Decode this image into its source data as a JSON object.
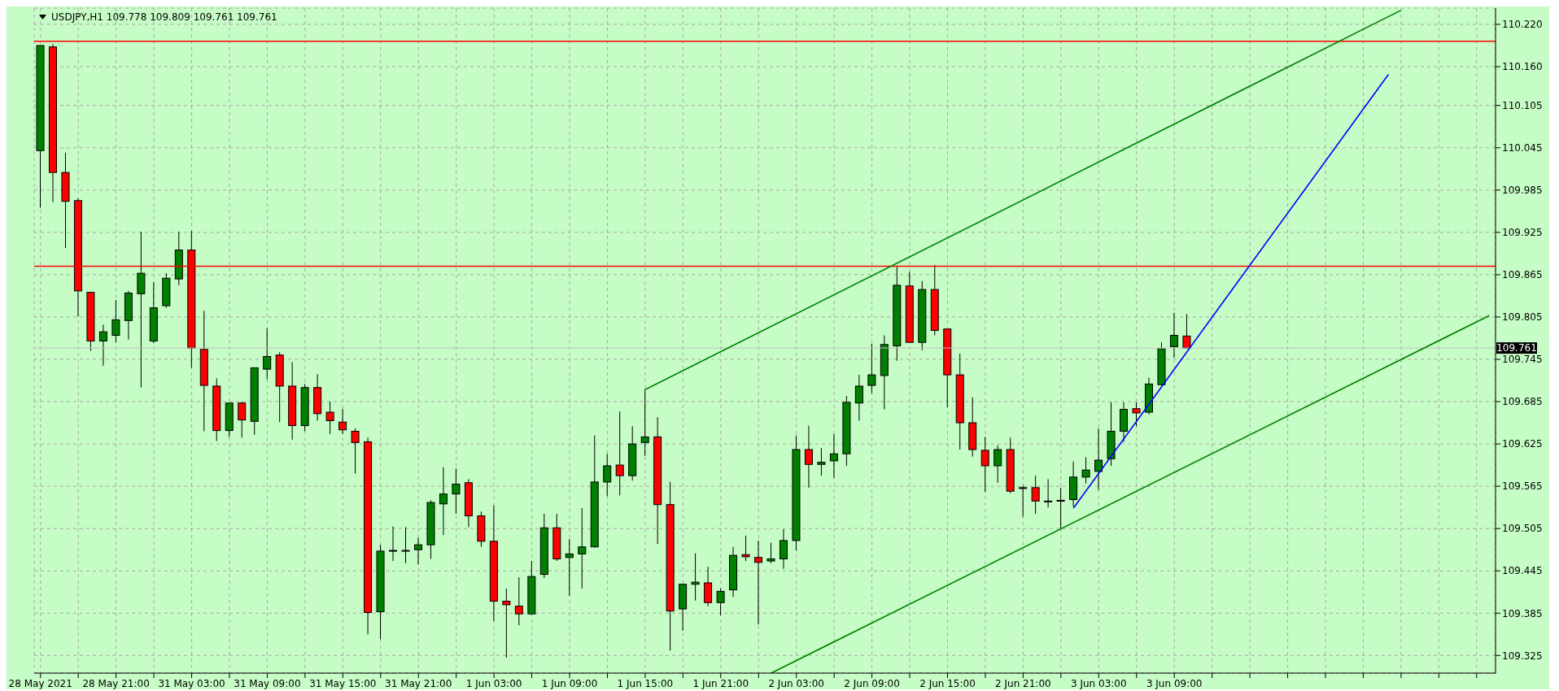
{
  "chart_data": {
    "type": "candlestick",
    "title": "USDJPY,H1 109.778 109.809 109.761 109.761",
    "categories": [
      "28 May 2021",
      null,
      null,
      null,
      null,
      null,
      "28 May 21:00",
      null,
      null,
      null,
      null,
      null,
      "31 May 03:00",
      null,
      null,
      null,
      null,
      null,
      "31 May 09:00",
      null,
      null,
      null,
      null,
      null,
      "31 May 15:00",
      null,
      null,
      null,
      null,
      null,
      "31 May 21:00",
      null,
      null,
      null,
      null,
      null,
      "1 Jun 03:00",
      null,
      null,
      null,
      null,
      null,
      "1 Jun 09:00",
      null,
      null,
      null,
      null,
      null,
      "1 Jun 15:00",
      null,
      null,
      null,
      null,
      null,
      "1 Jun 21:00",
      null,
      null,
      null,
      null,
      null,
      "2 Jun 03:00",
      null,
      null,
      null,
      null,
      null,
      "2 Jun 09:00",
      null,
      null,
      null,
      null,
      null,
      "2 Jun 15:00",
      null,
      null,
      null,
      null,
      null,
      "2 Jun 21:00",
      null,
      null,
      null,
      null,
      null,
      "3 Jun 03:00",
      null,
      null,
      null,
      null,
      null,
      "3 Jun 09:00",
      null,
      null,
      null,
      null,
      null,
      null,
      null,
      null,
      null,
      null,
      null,
      null,
      null,
      null,
      null,
      null,
      null,
      null,
      null,
      null,
      null,
      null,
      null,
      null,
      null
    ],
    "ohlc": [
      [
        110.041,
        110.19,
        109.96,
        110.19
      ],
      [
        110.188,
        110.192,
        109.968,
        110.01
      ],
      [
        110.01,
        110.038,
        109.903,
        109.969
      ],
      [
        109.97,
        109.973,
        109.806,
        109.842
      ],
      [
        109.84,
        109.84,
        109.757,
        109.771
      ],
      [
        109.771,
        109.794,
        109.736,
        109.784
      ],
      [
        109.779,
        109.829,
        109.769,
        109.801
      ],
      [
        109.8,
        109.842,
        109.773,
        109.839
      ],
      [
        109.838,
        109.926,
        109.705,
        109.867
      ],
      [
        109.771,
        109.854,
        109.768,
        109.818
      ],
      [
        109.821,
        109.867,
        109.818,
        109.86
      ],
      [
        109.859,
        109.926,
        109.85,
        109.9
      ],
      [
        109.9,
        109.927,
        109.733,
        109.761
      ],
      [
        109.759,
        109.814,
        109.643,
        109.708
      ],
      [
        109.707,
        109.718,
        109.629,
        109.644
      ],
      [
        109.644,
        109.683,
        109.635,
        109.683
      ],
      [
        109.683,
        109.685,
        109.634,
        109.659
      ],
      [
        109.657,
        109.733,
        109.638,
        109.733
      ],
      [
        109.731,
        109.789,
        109.717,
        109.749
      ],
      [
        109.751,
        109.755,
        109.656,
        109.707
      ],
      [
        109.707,
        109.741,
        109.631,
        109.651
      ],
      [
        109.651,
        109.71,
        109.643,
        109.705
      ],
      [
        109.705,
        109.724,
        109.658,
        109.668
      ],
      [
        109.67,
        109.685,
        109.639,
        109.658
      ],
      [
        109.656,
        109.675,
        109.639,
        109.645
      ],
      [
        109.643,
        109.647,
        109.583,
        109.627
      ],
      [
        109.628,
        109.634,
        109.355,
        109.386
      ],
      [
        109.387,
        109.482,
        109.348,
        109.473
      ],
      [
        109.474,
        109.508,
        109.459,
        109.474
      ],
      [
        109.474,
        109.507,
        109.456,
        109.474
      ],
      [
        109.475,
        109.492,
        109.454,
        109.482
      ],
      [
        109.482,
        109.545,
        109.462,
        109.542
      ],
      [
        109.54,
        109.592,
        109.496,
        109.554
      ],
      [
        109.554,
        109.59,
        109.526,
        109.568
      ],
      [
        109.57,
        109.575,
        109.507,
        109.523
      ],
      [
        109.523,
        109.529,
        109.479,
        109.487
      ],
      [
        109.487,
        109.538,
        109.374,
        109.402
      ],
      [
        109.402,
        109.42,
        109.322,
        109.397
      ],
      [
        109.395,
        109.436,
        109.368,
        109.384
      ],
      [
        109.384,
        109.459,
        109.383,
        109.437
      ],
      [
        109.44,
        109.526,
        109.435,
        109.506
      ],
      [
        109.506,
        109.526,
        109.459,
        109.462
      ],
      [
        109.464,
        109.49,
        109.41,
        109.469
      ],
      [
        109.469,
        109.534,
        109.42,
        109.479
      ],
      [
        109.479,
        109.637,
        109.478,
        109.571
      ],
      [
        109.571,
        109.611,
        109.551,
        109.594
      ],
      [
        109.595,
        109.671,
        109.552,
        109.58
      ],
      [
        109.58,
        109.65,
        109.573,
        109.625
      ],
      [
        109.627,
        109.702,
        109.608,
        109.635
      ],
      [
        109.635,
        109.663,
        109.483,
        109.539
      ],
      [
        109.539,
        109.571,
        109.332,
        109.388
      ],
      [
        109.391,
        109.426,
        109.36,
        109.426
      ],
      [
        109.426,
        109.47,
        109.403,
        109.429
      ],
      [
        109.428,
        109.451,
        109.395,
        109.4
      ],
      [
        109.4,
        109.42,
        109.382,
        109.416
      ],
      [
        109.418,
        109.479,
        109.408,
        109.467
      ],
      [
        109.468,
        109.495,
        109.459,
        109.465
      ],
      [
        109.464,
        109.488,
        109.369,
        109.457
      ],
      [
        109.459,
        109.485,
        109.456,
        109.462
      ],
      [
        109.462,
        109.504,
        109.448,
        109.488
      ],
      [
        109.488,
        109.637,
        109.474,
        109.617
      ],
      [
        109.617,
        109.651,
        109.563,
        109.596
      ],
      [
        109.596,
        109.619,
        109.58,
        109.599
      ],
      [
        109.601,
        109.639,
        109.577,
        109.611
      ],
      [
        109.611,
        109.693,
        109.594,
        109.684
      ],
      [
        109.683,
        109.723,
        109.658,
        109.707
      ],
      [
        109.708,
        109.767,
        109.697,
        109.723
      ],
      [
        109.722,
        109.779,
        109.674,
        109.766
      ],
      [
        109.764,
        109.877,
        109.743,
        109.85
      ],
      [
        109.849,
        109.869,
        109.769,
        109.769
      ],
      [
        109.769,
        109.856,
        109.758,
        109.844
      ],
      [
        109.844,
        109.879,
        109.779,
        109.786
      ],
      [
        109.788,
        109.788,
        109.677,
        109.723
      ],
      [
        109.723,
        109.753,
        109.617,
        109.655
      ],
      [
        109.655,
        109.691,
        109.607,
        109.617
      ],
      [
        109.616,
        109.635,
        109.557,
        109.594
      ],
      [
        109.594,
        109.623,
        109.57,
        109.617
      ],
      [
        109.617,
        109.634,
        109.555,
        109.558
      ],
      [
        109.563,
        109.566,
        109.522,
        109.563
      ],
      [
        109.563,
        109.58,
        109.526,
        109.544
      ],
      [
        109.544,
        109.575,
        109.535,
        109.544
      ],
      [
        109.545,
        109.563,
        109.504,
        109.545
      ],
      [
        109.546,
        109.6,
        109.536,
        109.578
      ],
      [
        109.578,
        109.606,
        109.569,
        109.588
      ],
      [
        109.586,
        109.647,
        109.56,
        109.602
      ],
      [
        109.604,
        109.684,
        109.594,
        109.643
      ],
      [
        109.643,
        109.684,
        109.628,
        109.674
      ],
      [
        109.675,
        109.684,
        109.65,
        109.669
      ],
      [
        109.67,
        109.719,
        109.667,
        109.71
      ],
      [
        109.709,
        109.769,
        109.708,
        109.76
      ],
      [
        109.763,
        109.811,
        109.747,
        109.779
      ],
      [
        109.778,
        109.809,
        109.761,
        109.761
      ],
      null,
      null,
      null,
      null,
      null,
      null,
      null,
      null,
      null,
      null,
      null,
      null,
      null,
      null,
      null,
      null,
      null,
      null,
      null,
      null,
      null,
      null,
      null,
      null
    ],
    "series": [
      {
        "type": "line",
        "color": "#008000",
        "values": [
          null,
          null,
          null,
          null,
          null,
          null,
          null,
          null,
          null,
          null,
          null,
          null,
          null,
          null,
          null,
          null,
          null,
          null,
          null,
          null,
          null,
          null,
          null,
          null,
          null,
          null,
          null,
          null,
          null,
          null,
          null,
          null,
          null,
          null,
          null,
          null,
          null,
          null,
          null,
          null,
          null,
          null,
          null,
          null,
          null,
          null,
          null,
          null,
          109.702,
          null,
          null,
          null,
          null,
          null,
          null,
          null,
          null,
          null,
          null,
          null,
          null,
          null,
          null,
          null,
          null,
          null,
          null,
          null,
          null,
          null,
          null,
          null,
          null,
          null,
          null,
          null,
          null,
          null,
          null,
          null,
          null,
          null,
          null,
          null,
          null,
          null,
          null,
          null,
          null,
          null,
          null,
          null,
          null,
          null,
          null,
          null,
          null,
          null,
          null,
          null,
          null,
          null,
          null,
          null,
          null,
          null,
          null,
          null,
          110.24,
          null,
          null,
          null,
          null,
          null,
          null,
          null
        ]
      },
      {
        "type": "line",
        "color": "#008000",
        "values": [
          null,
          null,
          null,
          null,
          null,
          null,
          null,
          null,
          null,
          null,
          null,
          null,
          null,
          null,
          null,
          null,
          null,
          null,
          null,
          null,
          null,
          null,
          null,
          null,
          null,
          null,
          null,
          null,
          null,
          null,
          null,
          null,
          null,
          null,
          null,
          null,
          null,
          null,
          null,
          null,
          null,
          null,
          null,
          null,
          null,
          null,
          null,
          null,
          null,
          null,
          null,
          null,
          null,
          null,
          null,
          null,
          null,
          null,
          109.3,
          null,
          null,
          null,
          null,
          null,
          null,
          null,
          null,
          null,
          null,
          null,
          null,
          null,
          null,
          null,
          null,
          null,
          null,
          null,
          null,
          null,
          null,
          null,
          null,
          null,
          null,
          null,
          null,
          null,
          null,
          null,
          null,
          null,
          null,
          null,
          null,
          null,
          null,
          null,
          null,
          null,
          null,
          null,
          null,
          null,
          null,
          null,
          null,
          null,
          null,
          null,
          null,
          null,
          null,
          null,
          null,
          109.807
        ]
      },
      {
        "type": "line",
        "color": "#0000ff",
        "values": [
          null,
          null,
          null,
          null,
          null,
          null,
          null,
          null,
          null,
          null,
          null,
          null,
          null,
          null,
          null,
          null,
          null,
          null,
          null,
          null,
          null,
          null,
          null,
          null,
          null,
          null,
          null,
          null,
          null,
          null,
          null,
          null,
          null,
          null,
          null,
          null,
          null,
          null,
          null,
          null,
          null,
          null,
          null,
          null,
          null,
          null,
          null,
          null,
          null,
          null,
          null,
          null,
          null,
          null,
          null,
          null,
          null,
          null,
          null,
          null,
          null,
          null,
          null,
          null,
          null,
          null,
          null,
          null,
          null,
          null,
          null,
          null,
          null,
          null,
          null,
          null,
          null,
          null,
          null,
          null,
          null,
          null,
          109.534,
          null,
          null,
          null,
          null,
          null,
          null,
          null,
          null,
          null,
          null,
          null,
          null,
          null,
          null,
          null,
          null,
          null,
          null,
          null,
          null,
          null,
          null,
          null,
          null,
          110.149,
          null,
          null,
          null,
          null,
          null,
          null,
          null,
          null
        ]
      }
    ],
    "ref_lines": [
      {
        "axis": "y",
        "value": 110.196,
        "color": "#ff0000"
      },
      {
        "axis": "y",
        "value": 109.877,
        "color": "#ff0000"
      },
      {
        "axis": "y",
        "value": 109.761,
        "label": "109.761",
        "color": "#c0c0c0"
      }
    ],
    "ylim": [
      109.3,
      110.243
    ],
    "yticks": [
      {
        "value": 110.22,
        "label": "110.220"
      },
      {
        "value": 110.16,
        "label": "110.160"
      },
      {
        "value": 110.105,
        "label": "110.105"
      },
      {
        "value": 110.045,
        "label": "110.045"
      },
      {
        "value": 109.985,
        "label": "109.985"
      },
      {
        "value": 109.925,
        "label": "109.925"
      },
      {
        "value": 109.865,
        "label": "109.865"
      },
      {
        "value": 109.805,
        "label": "109.805"
      },
      {
        "value": 109.745,
        "label": "109.745"
      },
      {
        "value": 109.685,
        "label": "109.685"
      },
      {
        "value": 109.625,
        "label": "109.625"
      },
      {
        "value": 109.565,
        "label": "109.565"
      },
      {
        "value": 109.505,
        "label": "109.505"
      },
      {
        "value": 109.445,
        "label": "109.445"
      },
      {
        "value": 109.385,
        "label": "109.385"
      },
      {
        "value": 109.325,
        "label": "109.325"
      }
    ],
    "grid": true
  }
}
